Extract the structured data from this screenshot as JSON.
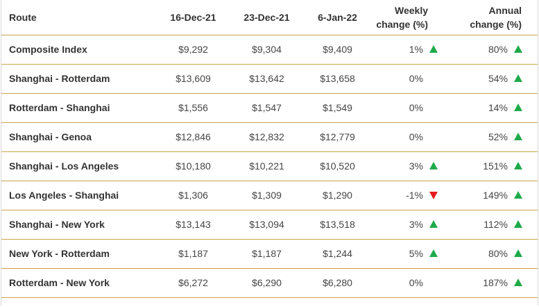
{
  "table": {
    "headers": {
      "route": "Route",
      "date_1": "16-Dec-21",
      "date_2": "23-Dec-21",
      "date_3": "6-Jan-22",
      "weekly_line1": "Weekly",
      "weekly_line2": "change (%)",
      "annual_line1": "Annual",
      "annual_line2": "change (%)"
    },
    "rows": [
      {
        "route": "Composite Index",
        "d1": "$9,292",
        "d2": "$9,304",
        "d3": "$9,409",
        "weekly": "1%",
        "weekly_trend": "up-arrow-icon",
        "annual": "80%",
        "annual_trend": "up-arrow-icon"
      },
      {
        "route": "Shanghai - Rotterdam",
        "d1": "$13,609",
        "d2": "$13,642",
        "d3": "$13,658",
        "weekly": "0%",
        "weekly_trend": "none",
        "annual": "54%",
        "annual_trend": "up-arrow-icon"
      },
      {
        "route": "Rotterdam - Shanghai",
        "d1": "$1,556",
        "d2": "$1,547",
        "d3": "$1,549",
        "weekly": "0%",
        "weekly_trend": "none",
        "annual": "14%",
        "annual_trend": "up-arrow-icon"
      },
      {
        "route": "Shanghai - Genoa",
        "d1": "$12,846",
        "d2": "$12,832",
        "d3": "$12,779",
        "weekly": "0%",
        "weekly_trend": "none",
        "annual": "52%",
        "annual_trend": "up-arrow-icon"
      },
      {
        "route": "Shanghai - Los Angeles",
        "d1": "$10,180",
        "d2": "$10,221",
        "d3": "$10,520",
        "weekly": "3%",
        "weekly_trend": "up-arrow-icon",
        "annual": "151%",
        "annual_trend": "up-arrow-icon"
      },
      {
        "route": "Los Angeles - Shanghai",
        "d1": "$1,306",
        "d2": "$1,309",
        "d3": "$1,290",
        "weekly": "-1%",
        "weekly_trend": "down-arrow-icon",
        "annual": "149%",
        "annual_trend": "up-arrow-icon"
      },
      {
        "route": "Shanghai - New York",
        "d1": "$13,143",
        "d2": "$13,094",
        "d3": "$13,518",
        "weekly": "3%",
        "weekly_trend": "up-arrow-icon",
        "annual": "112%",
        "annual_trend": "up-arrow-icon"
      },
      {
        "route": "New York - Rotterdam",
        "d1": "$1,187",
        "d2": "$1,187",
        "d3": "$1,244",
        "weekly": "5%",
        "weekly_trend": "up-arrow-icon",
        "annual": "80%",
        "annual_trend": "up-arrow-icon"
      },
      {
        "route": "Rotterdam - New York",
        "d1": "$6,272",
        "d2": "$6,290",
        "d3": "$6,280",
        "weekly": "0%",
        "weekly_trend": "none",
        "annual": "187%",
        "annual_trend": "up-arrow-icon"
      }
    ]
  },
  "colors": {
    "row_divider": "#c9a548",
    "up_arrow": "#1faa4a",
    "down_arrow": "#e51c1c",
    "text": "#333333"
  }
}
